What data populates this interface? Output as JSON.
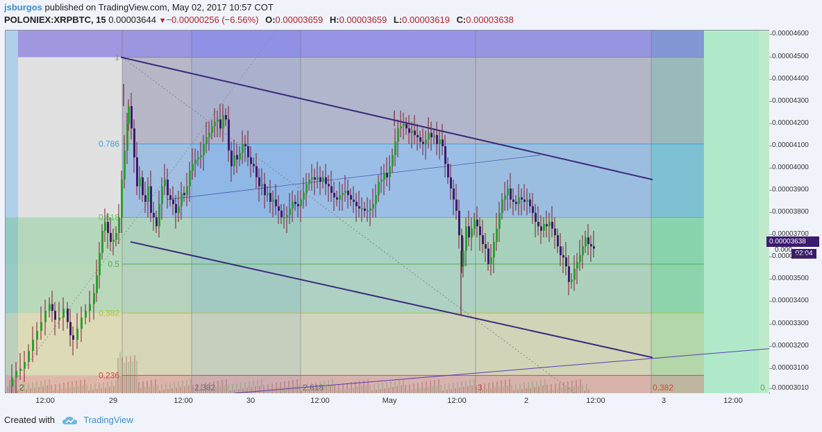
{
  "header": {
    "username": "jsburgos",
    "published": "published on TradingView.com, May 02, 2017 10:57 COT",
    "symbol": "POLONIEX:XRPBTC, 15",
    "price": "0.00003644",
    "change": "−0.00000256 (−6.56%)",
    "open_label": "O:",
    "open": "0.00003659",
    "high_label": "H:",
    "high": "0.00003659",
    "low_label": "L:",
    "low": "0.00003619",
    "close_label": "C:",
    "close": "0.00003638"
  },
  "price_tag": "0.00003638",
  "price_tag_under": "0.000",
  "time_tag": "02:04",
  "footer": {
    "created_with": "Created with",
    "brand": "TradingView"
  },
  "chart_data": {
    "type": "candlestick",
    "ylim": [
      2.99e-05,
      4.62e-05
    ],
    "y_ticks": [
      "0.00004600",
      "0.00004500",
      "0.00004400",
      "0.00004300",
      "0.00004200",
      "0.00004100",
      "0.00004000",
      "0.00003900",
      "0.00003800",
      "0.00003700",
      "0.00003600",
      "0.00003500",
      "0.00003400",
      "0.00003300",
      "0.00003200",
      "0.00003100",
      "0.00003010"
    ],
    "x_ticks": [
      "12:00",
      "29",
      "12:00",
      "30",
      "12:00",
      "May",
      "12:00",
      "2",
      "12:00",
      "3",
      "12:00"
    ],
    "fib_retracement": {
      "levels": [
        {
          "label": "1",
          "color": "#8a8a8a"
        },
        {
          "label": "0.786",
          "color": "#3aa3d9"
        },
        {
          "label": "0.618",
          "color": "#53c95d"
        },
        {
          "label": "0.5",
          "color": "#4caf50"
        },
        {
          "label": "0.382",
          "color": "#b7c425"
        },
        {
          "label": "0.236",
          "color": "#d9463b"
        }
      ],
      "high_price": 4.5e-05,
      "low_price": 3e-05
    },
    "fib_time_labels": [
      "2",
      "2.382",
      "2.618",
      "3",
      "0.382",
      "0."
    ],
    "trendlines": [
      {
        "name": "upper-channel",
        "from": [
          4.5e-05
        ],
        "to": [
          3.95e-05
        ]
      },
      {
        "name": "lower-channel",
        "from": [
          3.67e-05
        ],
        "to": [
          3.15e-05
        ]
      }
    ],
    "path": [
      [
        0,
        3.02e-05
      ],
      [
        6,
        3.06e-05
      ],
      [
        12,
        3.09e-05
      ],
      [
        18,
        3.1e-05
      ],
      [
        24,
        3.13e-05
      ],
      [
        30,
        3.18e-05
      ],
      [
        36,
        3.23e-05
      ],
      [
        42,
        3.27e-05
      ],
      [
        48,
        3.31e-05
      ],
      [
        54,
        3.36e-05
      ],
      [
        60,
        3.39e-05
      ],
      [
        64,
        3.36e-05
      ],
      [
        68,
        3.32e-05
      ],
      [
        74,
        3.33e-05
      ],
      [
        80,
        3.37e-05
      ],
      [
        86,
        3.31e-05
      ],
      [
        90,
        3.25e-05
      ],
      [
        94,
        3.23e-05
      ],
      [
        100,
        3.28e-05
      ],
      [
        106,
        3.33e-05
      ],
      [
        112,
        3.36e-05
      ],
      [
        118,
        3.39e-05
      ],
      [
        124,
        3.44e-05
      ],
      [
        128,
        3.52e-05
      ],
      [
        132,
        3.62e-05
      ],
      [
        136,
        3.72e-05
      ],
      [
        140,
        3.76e-05
      ],
      [
        144,
        3.71e-05
      ],
      [
        148,
        3.67e-05
      ],
      [
        152,
        3.68e-05
      ],
      [
        156,
        3.71e-05
      ],
      [
        160,
        3.78e-05
      ],
      [
        164,
        3.95e-05
      ],
      [
        168,
        4.08e-05
      ],
      [
        172,
        4.2e-05
      ],
      [
        174,
        4.28e-05
      ],
      [
        178,
        4.18e-05
      ],
      [
        182,
        4.05e-05
      ],
      [
        186,
        3.92e-05
      ],
      [
        190,
        3.96e-05
      ],
      [
        194,
        3.88e-05
      ],
      [
        198,
        3.85e-05
      ],
      [
        202,
        3.92e-05
      ],
      [
        206,
        3.8e-05
      ],
      [
        210,
        3.78e-05
      ],
      [
        214,
        3.74e-05
      ],
      [
        218,
        3.84e-05
      ],
      [
        222,
        3.92e-05
      ],
      [
        226,
        3.95e-05
      ],
      [
        230,
        3.88e-05
      ],
      [
        234,
        3.86e-05
      ],
      [
        238,
        3.84e-05
      ],
      [
        242,
        3.8e-05
      ],
      [
        246,
        3.83e-05
      ],
      [
        250,
        3.89e-05
      ],
      [
        254,
        3.88e-05
      ],
      [
        258,
        3.92e-05
      ],
      [
        262,
        3.99e-05
      ],
      [
        266,
        4.02e-05
      ],
      [
        270,
        4.04e-05
      ],
      [
        274,
        4.05e-05
      ],
      [
        278,
        4.06e-05
      ],
      [
        282,
        4.11e-05
      ],
      [
        286,
        4.14e-05
      ],
      [
        290,
        4.16e-05
      ],
      [
        294,
        4.19e-05
      ],
      [
        298,
        4.21e-05
      ],
      [
        302,
        4.22e-05
      ],
      [
        306,
        4.18e-05
      ],
      [
        310,
        4.24e-05
      ],
      [
        314,
        4.22e-05
      ],
      [
        318,
        4.08e-05
      ],
      [
        322,
        4.01e-05
      ],
      [
        326,
        4.06e-05
      ],
      [
        330,
        4.04e-05
      ],
      [
        334,
        4.07e-05
      ],
      [
        338,
        4.11e-05
      ],
      [
        342,
        4.1e-05
      ],
      [
        346,
        4.05e-05
      ],
      [
        350,
        4.02e-05
      ],
      [
        354,
        4.01e-05
      ],
      [
        358,
        3.96e-05
      ],
      [
        362,
        3.92e-05
      ],
      [
        366,
        3.93e-05
      ],
      [
        370,
        3.88e-05
      ],
      [
        374,
        3.89e-05
      ],
      [
        378,
        3.85e-05
      ],
      [
        382,
        3.86e-05
      ],
      [
        386,
        3.83e-05
      ],
      [
        390,
        3.81e-05
      ],
      [
        394,
        3.78e-05
      ],
      [
        398,
        3.78e-05
      ],
      [
        402,
        3.79e-05
      ],
      [
        406,
        3.82e-05
      ],
      [
        410,
        3.85e-05
      ],
      [
        414,
        3.84e-05
      ],
      [
        418,
        3.83e-05
      ],
      [
        422,
        3.86e-05
      ],
      [
        426,
        3.89e-05
      ],
      [
        430,
        3.93e-05
      ],
      [
        434,
        3.95e-05
      ],
      [
        438,
        3.96e-05
      ],
      [
        442,
        3.95e-05
      ],
      [
        446,
        3.96e-05
      ],
      [
        450,
        3.94e-05
      ],
      [
        454,
        3.96e-05
      ],
      [
        458,
        3.93e-05
      ],
      [
        462,
        3.92e-05
      ],
      [
        466,
        3.89e-05
      ],
      [
        470,
        3.87e-05
      ],
      [
        474,
        3.86e-05
      ],
      [
        478,
        3.88e-05
      ],
      [
        482,
        3.89e-05
      ],
      [
        486,
        3.9e-05
      ],
      [
        490,
        3.88e-05
      ],
      [
        494,
        3.86e-05
      ],
      [
        498,
        3.85e-05
      ],
      [
        502,
        3.83e-05
      ],
      [
        506,
        3.82e-05
      ],
      [
        510,
        3.82e-05
      ],
      [
        514,
        3.81e-05
      ],
      [
        518,
        3.81e-05
      ],
      [
        522,
        3.82e-05
      ],
      [
        526,
        3.84e-05
      ],
      [
        530,
        3.88e-05
      ],
      [
        534,
        3.94e-05
      ],
      [
        538,
        3.95e-05
      ],
      [
        542,
        3.98e-05
      ],
      [
        546,
        3.96e-05
      ],
      [
        550,
        4.01e-05
      ],
      [
        554,
        4.06e-05
      ],
      [
        558,
        4.12e-05
      ],
      [
        562,
        4.18e-05
      ],
      [
        566,
        4.19e-05
      ],
      [
        570,
        4.2e-05
      ],
      [
        574,
        4.18e-05
      ],
      [
        578,
        4.16e-05
      ],
      [
        582,
        4.17e-05
      ],
      [
        586,
        4.15e-05
      ],
      [
        590,
        4.14e-05
      ],
      [
        594,
        4.12e-05
      ],
      [
        598,
        4.11e-05
      ],
      [
        602,
        4.13e-05
      ],
      [
        606,
        4.16e-05
      ],
      [
        610,
        4.14e-05
      ],
      [
        614,
        4.15e-05
      ],
      [
        618,
        4.11e-05
      ],
      [
        622,
        4.13e-05
      ],
      [
        626,
        4.1e-05
      ],
      [
        630,
        4.02e-05
      ],
      [
        634,
        3.96e-05
      ],
      [
        638,
        3.91e-05
      ],
      [
        642,
        3.86e-05
      ],
      [
        646,
        3.81e-05
      ],
      [
        650,
        3.7e-05
      ],
      [
        654,
        3.56e-05
      ],
      [
        656,
        3.63e-05
      ],
      [
        660,
        3.74e-05
      ],
      [
        664,
        3.69e-05
      ],
      [
        668,
        3.73e-05
      ],
      [
        672,
        3.77e-05
      ],
      [
        676,
        3.74e-05
      ],
      [
        680,
        3.7e-05
      ],
      [
        684,
        3.66e-05
      ],
      [
        688,
        3.64e-05
      ],
      [
        692,
        3.57e-05
      ],
      [
        696,
        3.6e-05
      ],
      [
        700,
        3.67e-05
      ],
      [
        704,
        3.73e-05
      ],
      [
        708,
        3.8e-05
      ],
      [
        712,
        3.86e-05
      ],
      [
        716,
        3.88e-05
      ],
      [
        720,
        3.91e-05
      ],
      [
        724,
        3.86e-05
      ],
      [
        728,
        3.85e-05
      ],
      [
        732,
        3.84e-05
      ],
      [
        736,
        3.87e-05
      ],
      [
        740,
        3.86e-05
      ],
      [
        744,
        3.85e-05
      ],
      [
        748,
        3.86e-05
      ],
      [
        752,
        3.83e-05
      ],
      [
        756,
        3.8e-05
      ],
      [
        760,
        3.76e-05
      ],
      [
        764,
        3.74e-05
      ],
      [
        768,
        3.72e-05
      ],
      [
        772,
        3.75e-05
      ],
      [
        776,
        3.74e-05
      ],
      [
        780,
        3.76e-05
      ],
      [
        784,
        3.73e-05
      ],
      [
        788,
        3.7e-05
      ],
      [
        792,
        3.65e-05
      ],
      [
        796,
        3.61e-05
      ],
      [
        800,
        3.6e-05
      ],
      [
        804,
        3.56e-05
      ],
      [
        808,
        3.49e-05
      ],
      [
        812,
        3.5e-05
      ],
      [
        816,
        3.55e-05
      ],
      [
        820,
        3.58e-05
      ],
      [
        824,
        3.61e-05
      ],
      [
        828,
        3.65e-05
      ],
      [
        832,
        3.69e-05
      ],
      [
        836,
        3.66e-05
      ],
      [
        840,
        3.65e-05
      ],
      [
        844,
        3.64e-05
      ]
    ]
  }
}
